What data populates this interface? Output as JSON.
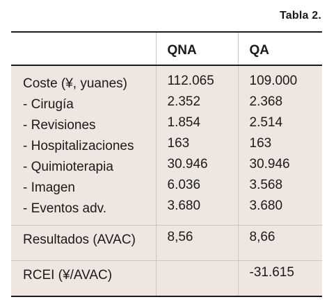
{
  "caption": "Tabla 2.",
  "table": {
    "headers": [
      "",
      "QNA",
      "QA"
    ],
    "cost_group": {
      "labels": [
        "Coste (¥, yuanes)",
        "- Cirugía",
        "- Revisiones",
        "- Hospitalizaciones",
        "- Quimioterapia",
        "- Imagen",
        "- Eventos adv."
      ],
      "qna": [
        "112.065",
        "2.352",
        "1.854",
        "163",
        "30.946",
        "6.036",
        "3.680"
      ],
      "qa": [
        "109.000",
        "2.368",
        "2.514",
        "163",
        "30.946",
        "3.568",
        "3.680"
      ]
    },
    "results": {
      "label": "Resultados (AVAC)",
      "qna": "8,56",
      "qa": "8,66"
    },
    "rcei": {
      "label": "RCEI (¥/AVAC)",
      "qna": "",
      "qa": "-31.615"
    }
  }
}
